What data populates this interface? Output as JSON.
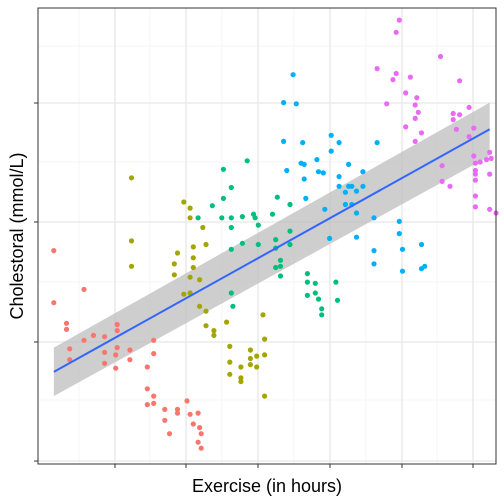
{
  "chart_data": {
    "type": "scatter",
    "title": "",
    "xlabel": "Exercise (in hours)",
    "ylabel": "Cholestoral (mmol/L)",
    "x_tick_labels": [],
    "y_tick_labels": [],
    "xlim": [
      0,
      28.9
    ],
    "ylim": [
      0,
      37.6
    ],
    "grid": true,
    "legend": "none",
    "colors": {
      "panel_border": "#333333",
      "grid_major": "#ebebeb",
      "grid_minor": "#f5f5f5",
      "fit_line": "#3366ff",
      "ribbon": "#bebebe",
      "group_1": "#f8766d",
      "group_2": "#a3a500",
      "group_3": "#00bf7d",
      "group_4": "#00b0f6",
      "group_5": "#e76bf3"
    },
    "series": [
      {
        "color": "#f8766d",
        "points": [
          [
            1.0,
            17.6
          ],
          [
            1.0,
            13.3
          ],
          [
            1.8,
            11.6
          ],
          [
            1.8,
            11.1
          ],
          [
            2.0,
            8.6
          ],
          [
            2.0,
            9.5
          ],
          [
            2.9,
            14.4
          ],
          [
            2.9,
            10.2
          ],
          [
            3.5,
            10.6
          ],
          [
            4.2,
            10.5
          ],
          [
            4.2,
            9.2
          ],
          [
            4.2,
            8.3
          ],
          [
            4.9,
            9.0
          ],
          [
            4.9,
            7.9
          ],
          [
            5.0,
            11.5
          ],
          [
            5.0,
            11.0
          ],
          [
            5.0,
            9.6
          ],
          [
            5.8,
            9.4
          ],
          [
            5.8,
            8.6
          ],
          [
            6.9,
            8.0
          ],
          [
            6.9,
            6.2
          ],
          [
            6.9,
            4.9
          ],
          [
            7.3,
            5.6
          ],
          [
            7.3,
            5.0
          ],
          [
            7.3,
            10.2
          ],
          [
            7.3,
            9.1
          ],
          [
            8.0,
            4.5
          ],
          [
            8.0,
            3.6
          ],
          [
            8.3,
            2.5
          ],
          [
            8.8,
            4.5
          ],
          [
            8.8,
            4.2
          ],
          [
            9.4,
            5.2
          ],
          [
            9.6,
            4.1
          ],
          [
            9.8,
            3.3
          ],
          [
            10.1,
            4.2
          ],
          [
            10.1,
            1.8
          ],
          [
            10.3,
            2.5
          ],
          [
            10.3,
            1.3
          ],
          [
            10.2,
            3.0
          ]
        ]
      },
      {
        "color": "#a3a500",
        "points": [
          [
            5.9,
            23.6
          ],
          [
            5.9,
            18.4
          ],
          [
            5.9,
            16.3
          ],
          [
            8.6,
            16.5
          ],
          [
            8.6,
            15.6
          ],
          [
            8.8,
            17.4
          ],
          [
            9.2,
            14.0
          ],
          [
            9.6,
            14.1
          ],
          [
            9.6,
            15.4
          ],
          [
            9.6,
            20.3
          ],
          [
            9.6,
            21.1
          ],
          [
            9.2,
            21.6
          ],
          [
            9.8,
            17.9
          ],
          [
            9.8,
            17.0
          ],
          [
            9.8,
            16.2
          ],
          [
            10.2,
            15.2
          ],
          [
            10.2,
            13.0
          ],
          [
            10.6,
            12.6
          ],
          [
            10.6,
            11.4
          ],
          [
            10.6,
            18.1
          ],
          [
            10.4,
            19.5
          ],
          [
            11.1,
            10.6
          ],
          [
            11.1,
            11.0
          ],
          [
            11.9,
            11.7
          ],
          [
            12.1,
            9.7
          ],
          [
            12.1,
            7.4
          ],
          [
            12.1,
            8.4
          ],
          [
            12.8,
            8.0
          ],
          [
            12.8,
            7.1
          ],
          [
            12.8,
            6.8
          ],
          [
            13.4,
            9.4
          ],
          [
            13.4,
            8.7
          ],
          [
            13.4,
            8.2
          ],
          [
            13.8,
            8.9
          ],
          [
            13.8,
            8.0
          ],
          [
            14.3,
            10.3
          ],
          [
            14.3,
            9.0
          ],
          [
            14.3,
            5.6
          ],
          [
            14.2,
            12.3
          ]
        ]
      },
      {
        "color": "#00bf7d",
        "points": [
          [
            11.0,
            21.3
          ],
          [
            10.1,
            20.3
          ],
          [
            11.7,
            24.3
          ],
          [
            11.7,
            21.9
          ],
          [
            11.6,
            20.3
          ],
          [
            12.2,
            22.8
          ],
          [
            12.2,
            20.3
          ],
          [
            12.2,
            19.5
          ],
          [
            12.2,
            17.7
          ],
          [
            12.2,
            14.1
          ],
          [
            12.3,
            13.0
          ],
          [
            12.9,
            18.2
          ],
          [
            12.9,
            20.4
          ],
          [
            13.2,
            25.0
          ],
          [
            13.6,
            20.6
          ],
          [
            13.7,
            20.3
          ],
          [
            13.9,
            19.7
          ],
          [
            13.9,
            18.1
          ],
          [
            14.8,
            20.6
          ],
          [
            15.0,
            18.5
          ],
          [
            15.0,
            17.8
          ],
          [
            15.0,
            16.2
          ],
          [
            15.1,
            22.0
          ],
          [
            15.3,
            16.8
          ],
          [
            15.3,
            16.3
          ],
          [
            15.3,
            15.5
          ],
          [
            15.9,
            21.4
          ],
          [
            15.9,
            19.2
          ],
          [
            15.9,
            18.1
          ],
          [
            17.0,
            15.7
          ],
          [
            17.0,
            15.0
          ],
          [
            17.0,
            13.9
          ],
          [
            17.5,
            14.9
          ],
          [
            17.5,
            14.1
          ],
          [
            17.7,
            13.6
          ],
          [
            17.9,
            12.3
          ],
          [
            17.9,
            12.8
          ],
          [
            18.8,
            15.0
          ],
          [
            18.9,
            13.5
          ]
        ]
      },
      {
        "color": "#00b0f6",
        "points": [
          [
            15.5,
            26.6
          ],
          [
            15.5,
            29.8
          ],
          [
            15.7,
            24.2
          ],
          [
            16.1,
            32.1
          ],
          [
            16.3,
            29.7
          ],
          [
            16.7,
            26.5
          ],
          [
            16.8,
            24.7
          ],
          [
            16.8,
            23.5
          ],
          [
            16.9,
            21.9
          ],
          [
            16.6,
            24.8
          ],
          [
            17.6,
            25.1
          ],
          [
            17.7,
            24.1
          ],
          [
            18.0,
            24.0
          ],
          [
            18.1,
            21.0
          ],
          [
            18.4,
            18.6
          ],
          [
            18.5,
            25.8
          ],
          [
            18.5,
            27.1
          ],
          [
            19.0,
            26.5
          ],
          [
            19.0,
            23.7
          ],
          [
            19.0,
            22.9
          ],
          [
            19.4,
            22.4
          ],
          [
            19.4,
            21.4
          ],
          [
            19.6,
            24.7
          ],
          [
            19.6,
            22.9
          ],
          [
            19.8,
            22.9
          ],
          [
            19.8,
            21.4
          ],
          [
            20.1,
            22.5
          ],
          [
            20.1,
            20.7
          ],
          [
            20.1,
            18.7
          ],
          [
            20.5,
            22.9
          ],
          [
            20.5,
            24.1
          ],
          [
            21.2,
            20.3
          ],
          [
            21.2,
            17.6
          ],
          [
            21.2,
            16.5
          ],
          [
            21.4,
            26.5
          ],
          [
            22.8,
            20.0
          ],
          [
            22.8,
            19.0
          ],
          [
            23.0,
            17.7
          ],
          [
            23.0,
            15.9
          ],
          [
            24.2,
            18.1
          ],
          [
            24.2,
            16.1
          ],
          [
            24.4,
            16.3
          ]
        ]
      },
      {
        "color": "#e76bf3",
        "points": [
          [
            21.4,
            32.6
          ],
          [
            22.0,
            29.7
          ],
          [
            22.4,
            31.7
          ],
          [
            22.6,
            32.2
          ],
          [
            22.6,
            35.6
          ],
          [
            22.8,
            36.6
          ],
          [
            23.2,
            30.6
          ],
          [
            23.2,
            27.8
          ],
          [
            23.5,
            31.9
          ],
          [
            23.8,
            29.6
          ],
          [
            23.8,
            28.5
          ],
          [
            23.8,
            26.6
          ],
          [
            23.9,
            30.2
          ],
          [
            24.0,
            29.0
          ],
          [
            24.2,
            27.3
          ],
          [
            25.4,
            33.6
          ],
          [
            25.5,
            24.6
          ],
          [
            25.5,
            23.3
          ],
          [
            26.0,
            22.9
          ],
          [
            26.2,
            28.4
          ],
          [
            26.2,
            28.9
          ],
          [
            26.4,
            27.6
          ],
          [
            26.6,
            31.6
          ],
          [
            26.6,
            28.8
          ],
          [
            27.2,
            29.4
          ],
          [
            27.2,
            27.0
          ],
          [
            27.5,
            27.7
          ],
          [
            27.5,
            25.4
          ],
          [
            27.6,
            24.8
          ],
          [
            27.6,
            24.2
          ],
          [
            27.6,
            23.9
          ],
          [
            27.6,
            23.4
          ],
          [
            27.6,
            22.1
          ],
          [
            27.6,
            21.2
          ],
          [
            27.9,
            24.9
          ],
          [
            28.3,
            25.1
          ],
          [
            28.5,
            23.9
          ],
          [
            28.5,
            25.7
          ],
          [
            28.6,
            25.2
          ],
          [
            28.5,
            21.0
          ],
          [
            28.9,
            20.7
          ]
        ]
      }
    ],
    "trend_line": {
      "x": [
        1.0,
        28.5
      ],
      "y": [
        7.6,
        27.6
      ],
      "ci_lower": [
        5.6,
        25.4
      ],
      "ci_upper": [
        9.6,
        29.8
      ]
    }
  }
}
